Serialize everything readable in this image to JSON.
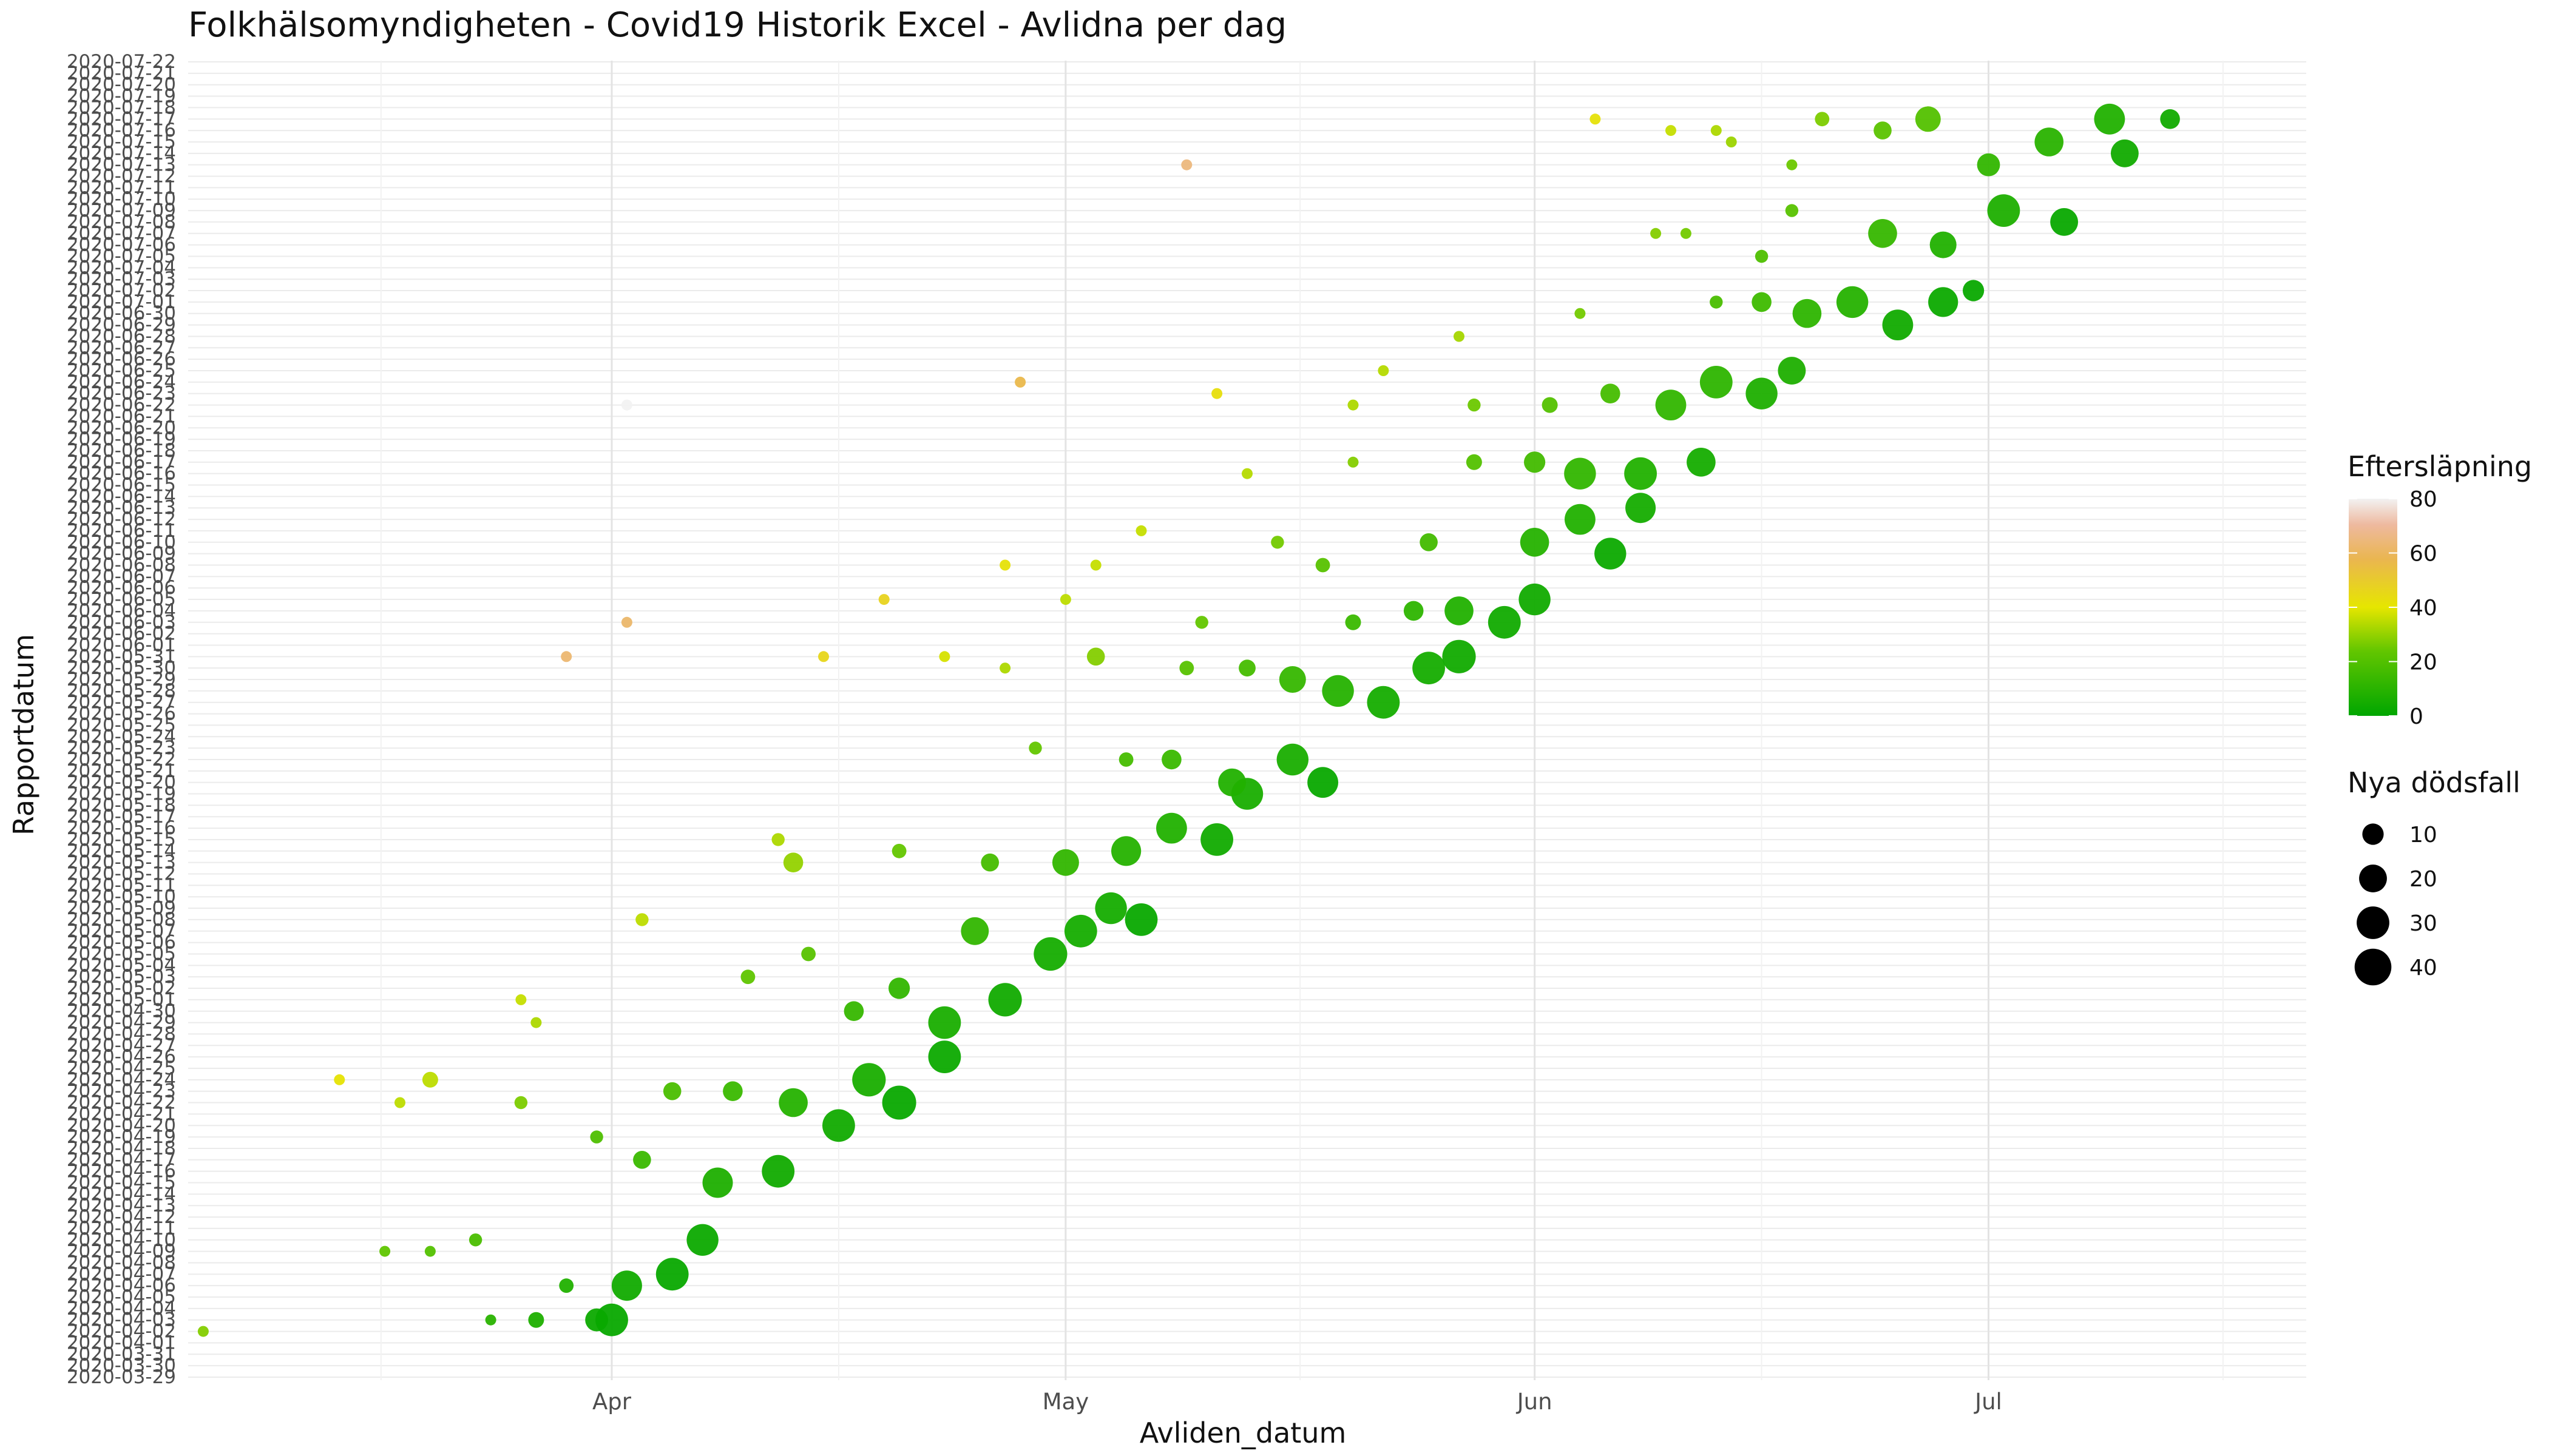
{
  "chart_data": {
    "type": "scatter",
    "title": "Folkhälsomyndigheten - Covid19 Historik Excel - Avlidna per dag",
    "xlabel": "Avliden_datum",
    "ylabel": "Rapportdatum",
    "x_tick_labels": [
      "Apr",
      "May",
      "Jun",
      "Jul"
    ],
    "x_tick_dates": [
      "2020-04-01",
      "2020-05-01",
      "2020-06-01",
      "2020-07-01"
    ],
    "xlim": [
      "2020-03-04",
      "2020-07-22"
    ],
    "y_tick_labels": [
      "2020-03-29",
      "2020-03-30",
      "2020-03-31",
      "2020-04-01",
      "2020-04-02",
      "2020-04-03",
      "2020-04-04",
      "2020-04-05",
      "2020-04-06",
      "2020-04-07",
      "2020-04-08",
      "2020-04-09",
      "2020-04-10",
      "2020-04-11",
      "2020-04-12",
      "2020-04-13",
      "2020-04-14",
      "2020-04-15",
      "2020-04-16",
      "2020-04-17",
      "2020-04-18",
      "2020-04-19",
      "2020-04-20",
      "2020-04-21",
      "2020-04-22",
      "2020-04-23",
      "2020-04-24",
      "2020-04-25",
      "2020-04-26",
      "2020-04-27",
      "2020-04-28",
      "2020-04-29",
      "2020-04-30",
      "2020-05-01",
      "2020-05-02",
      "2020-05-03",
      "2020-05-04",
      "2020-05-05",
      "2020-05-06",
      "2020-05-07",
      "2020-05-08",
      "2020-05-09",
      "2020-05-10",
      "2020-05-11",
      "2020-05-12",
      "2020-05-13",
      "2020-05-14",
      "2020-05-15",
      "2020-05-16",
      "2020-05-17",
      "2020-05-18",
      "2020-05-19",
      "2020-05-20",
      "2020-05-21",
      "2020-05-22",
      "2020-05-23",
      "2020-05-24",
      "2020-05-25",
      "2020-05-26",
      "2020-05-27",
      "2020-05-28",
      "2020-05-29",
      "2020-05-30",
      "2020-05-31",
      "2020-06-01",
      "2020-06-02",
      "2020-06-03",
      "2020-06-04",
      "2020-06-05",
      "2020-06-06",
      "2020-06-07",
      "2020-06-08",
      "2020-06-09",
      "2020-06-10",
      "2020-06-11",
      "2020-06-12",
      "2020-06-13",
      "2020-06-14",
      "2020-06-15",
      "2020-06-16",
      "2020-06-17",
      "2020-06-18",
      "2020-06-19",
      "2020-06-20",
      "2020-06-21",
      "2020-06-22",
      "2020-06-23",
      "2020-06-24",
      "2020-06-25",
      "2020-06-26",
      "2020-06-27",
      "2020-06-28",
      "2020-06-29",
      "2020-06-30",
      "2020-07-01",
      "2020-07-02",
      "2020-07-03",
      "2020-07-04",
      "2020-07-05",
      "2020-07-06",
      "2020-07-07",
      "2020-07-08",
      "2020-07-09",
      "2020-07-10",
      "2020-07-11",
      "2020-07-12",
      "2020-07-13",
      "2020-07-14",
      "2020-07-15",
      "2020-07-16",
      "2020-07-17",
      "2020-07-18",
      "2020-07-19",
      "2020-07-20",
      "2020-07-21",
      "2020-07-22"
    ],
    "grid": true,
    "theme": "minimal",
    "color_legend": {
      "title": "Eftersläpning",
      "ticks": [
        0,
        20,
        40,
        60,
        80
      ],
      "range": [
        0,
        80
      ],
      "gradient": [
        "#00a600",
        "#e6e600",
        "#eab64f",
        "#eeb99f",
        "#f2f2f2"
      ],
      "placement": "right"
    },
    "size_legend": {
      "title": "Nya dödsfall",
      "values": [
        10,
        20,
        30,
        40
      ],
      "placement": "right"
    },
    "points": [
      {
        "x": "2020-03-05",
        "y": "2020-04-02",
        "lag": 28,
        "n": 1
      },
      {
        "x": "2020-03-17",
        "y": "2020-04-09",
        "lag": 23,
        "n": 1
      },
      {
        "x": "2020-03-20",
        "y": "2020-04-09",
        "lag": 20,
        "n": 1
      },
      {
        "x": "2020-03-23",
        "y": "2020-04-10",
        "lag": 18,
        "n": 2
      },
      {
        "x": "2020-03-24",
        "y": "2020-04-03",
        "lag": 10,
        "n": 1
      },
      {
        "x": "2020-03-27",
        "y": "2020-04-03",
        "lag": 7,
        "n": 4
      },
      {
        "x": "2020-03-29",
        "y": "2020-04-06",
        "lag": 8,
        "n": 3
      },
      {
        "x": "2020-03-31",
        "y": "2020-04-03",
        "lag": 3,
        "n": 12
      },
      {
        "x": "2020-04-01",
        "y": "2020-04-03",
        "lag": 2,
        "n": 30
      },
      {
        "x": "2020-04-02",
        "y": "2020-04-06",
        "lag": 4,
        "n": 25
      },
      {
        "x": "2020-04-05",
        "y": "2020-04-07",
        "lag": 2,
        "n": 30
      },
      {
        "x": "2020-04-07",
        "y": "2020-04-10",
        "lag": 3,
        "n": 28
      },
      {
        "x": "2020-03-14",
        "y": "2020-04-24",
        "lag": 41,
        "n": 1
      },
      {
        "x": "2020-03-18",
        "y": "2020-04-22",
        "lag": 35,
        "n": 1
      },
      {
        "x": "2020-03-20",
        "y": "2020-04-24",
        "lag": 35,
        "n": 4
      },
      {
        "x": "2020-03-26",
        "y": "2020-04-22",
        "lag": 27,
        "n": 2
      },
      {
        "x": "2020-03-31",
        "y": "2020-04-19",
        "lag": 19,
        "n": 2
      },
      {
        "x": "2020-04-03",
        "y": "2020-04-17",
        "lag": 14,
        "n": 6
      },
      {
        "x": "2020-04-05",
        "y": "2020-04-23",
        "lag": 18,
        "n": 6
      },
      {
        "x": "2020-04-08",
        "y": "2020-04-15",
        "lag": 7,
        "n": 25
      },
      {
        "x": "2020-04-09",
        "y": "2020-04-23",
        "lag": 14,
        "n": 8
      },
      {
        "x": "2020-04-12",
        "y": "2020-04-16",
        "lag": 4,
        "n": 30
      },
      {
        "x": "2020-04-13",
        "y": "2020-04-22",
        "lag": 9,
        "n": 22
      },
      {
        "x": "2020-04-16",
        "y": "2020-04-20",
        "lag": 4,
        "n": 30
      },
      {
        "x": "2020-04-18",
        "y": "2020-04-24",
        "lag": 6,
        "n": 32
      },
      {
        "x": "2020-04-20",
        "y": "2020-04-22",
        "lag": 2,
        "n": 33
      },
      {
        "x": "2020-04-23",
        "y": "2020-04-26",
        "lag": 3,
        "n": 30
      },
      {
        "x": "2020-03-26",
        "y": "2020-05-01",
        "lag": 36,
        "n": 1
      },
      {
        "x": "2020-03-27",
        "y": "2020-04-29",
        "lag": 33,
        "n": 1
      },
      {
        "x": "2020-04-03",
        "y": "2020-05-08",
        "lag": 35,
        "n": 2
      },
      {
        "x": "2020-04-10",
        "y": "2020-05-03",
        "lag": 23,
        "n": 3
      },
      {
        "x": "2020-04-14",
        "y": "2020-05-05",
        "lag": 21,
        "n": 3
      },
      {
        "x": "2020-04-17",
        "y": "2020-04-30",
        "lag": 13,
        "n": 8
      },
      {
        "x": "2020-04-20",
        "y": "2020-05-02",
        "lag": 12,
        "n": 10
      },
      {
        "x": "2020-04-23",
        "y": "2020-04-29",
        "lag": 6,
        "n": 30
      },
      {
        "x": "2020-04-25",
        "y": "2020-05-07",
        "lag": 12,
        "n": 20
      },
      {
        "x": "2020-04-27",
        "y": "2020-05-01",
        "lag": 4,
        "n": 32
      },
      {
        "x": "2020-04-30",
        "y": "2020-05-05",
        "lag": 5,
        "n": 32
      },
      {
        "x": "2020-05-02",
        "y": "2020-05-07",
        "lag": 5,
        "n": 30
      },
      {
        "x": "2020-05-04",
        "y": "2020-05-09",
        "lag": 5,
        "n": 28
      },
      {
        "x": "2020-05-06",
        "y": "2020-05-08",
        "lag": 2,
        "n": 30
      },
      {
        "x": "2020-04-12",
        "y": "2020-05-15",
        "lag": 33,
        "n": 2
      },
      {
        "x": "2020-04-13",
        "y": "2020-05-13",
        "lag": 30,
        "n": 8
      },
      {
        "x": "2020-04-20",
        "y": "2020-05-14",
        "lag": 24,
        "n": 3
      },
      {
        "x": "2020-04-26",
        "y": "2020-05-13",
        "lag": 17,
        "n": 6
      },
      {
        "x": "2020-05-01",
        "y": "2020-05-13",
        "lag": 12,
        "n": 18
      },
      {
        "x": "2020-05-05",
        "y": "2020-05-14",
        "lag": 9,
        "n": 24
      },
      {
        "x": "2020-05-08",
        "y": "2020-05-16",
        "lag": 8,
        "n": 26
      },
      {
        "x": "2020-05-11",
        "y": "2020-05-15",
        "lag": 4,
        "n": 30
      },
      {
        "x": "2020-05-13",
        "y": "2020-05-19",
        "lag": 6,
        "n": 28
      },
      {
        "x": "2020-05-16",
        "y": "2020-05-22",
        "lag": 6,
        "n": 28
      },
      {
        "x": "2020-05-18",
        "y": "2020-05-20",
        "lag": 2,
        "n": 26
      },
      {
        "x": "2020-04-29",
        "y": "2020-05-23",
        "lag": 24,
        "n": 2
      },
      {
        "x": "2020-05-05",
        "y": "2020-05-22",
        "lag": 17,
        "n": 3
      },
      {
        "x": "2020-05-08",
        "y": "2020-05-22",
        "lag": 14,
        "n": 8
      },
      {
        "x": "2020-05-12",
        "y": "2020-05-20",
        "lag": 8,
        "n": 20
      },
      {
        "x": "2020-03-29",
        "y": "2020-05-31",
        "lag": 63,
        "n": 1
      },
      {
        "x": "2020-04-15",
        "y": "2020-05-31",
        "lag": 46,
        "n": 1
      },
      {
        "x": "2020-04-23",
        "y": "2020-05-31",
        "lag": 38,
        "n": 1
      },
      {
        "x": "2020-04-27",
        "y": "2020-05-30",
        "lag": 33,
        "n": 1
      },
      {
        "x": "2020-05-03",
        "y": "2020-05-31",
        "lag": 28,
        "n": 6
      },
      {
        "x": "2020-05-09",
        "y": "2020-05-30",
        "lag": 21,
        "n": 3
      },
      {
        "x": "2020-05-13",
        "y": "2020-05-30",
        "lag": 17,
        "n": 5
      },
      {
        "x": "2020-05-16",
        "y": "2020-05-29",
        "lag": 13,
        "n": 18
      },
      {
        "x": "2020-05-19",
        "y": "2020-05-28",
        "lag": 9,
        "n": 28
      },
      {
        "x": "2020-05-22",
        "y": "2020-05-27",
        "lag": 5,
        "n": 30
      },
      {
        "x": "2020-05-25",
        "y": "2020-05-30",
        "lag": 5,
        "n": 30
      },
      {
        "x": "2020-05-27",
        "y": "2020-05-31",
        "lag": 4,
        "n": 32
      },
      {
        "x": "2020-04-02",
        "y": "2020-06-03",
        "lag": 62,
        "n": 1
      },
      {
        "x": "2020-04-19",
        "y": "2020-06-05",
        "lag": 47,
        "n": 1
      },
      {
        "x": "2020-05-01",
        "y": "2020-06-05",
        "lag": 35,
        "n": 1
      },
      {
        "x": "2020-05-10",
        "y": "2020-06-03",
        "lag": 24,
        "n": 2
      },
      {
        "x": "2020-05-20",
        "y": "2020-06-03",
        "lag": 14,
        "n": 4
      },
      {
        "x": "2020-05-24",
        "y": "2020-06-04",
        "lag": 11,
        "n": 8
      },
      {
        "x": "2020-05-27",
        "y": "2020-06-04",
        "lag": 8,
        "n": 22
      },
      {
        "x": "2020-05-30",
        "y": "2020-06-03",
        "lag": 4,
        "n": 30
      },
      {
        "x": "2020-06-01",
        "y": "2020-06-05",
        "lag": 4,
        "n": 28
      },
      {
        "x": "2020-04-27",
        "y": "2020-06-08",
        "lag": 42,
        "n": 1
      },
      {
        "x": "2020-05-03",
        "y": "2020-06-08",
        "lag": 36,
        "n": 1
      },
      {
        "x": "2020-05-06",
        "y": "2020-06-11",
        "lag": 36,
        "n": 1
      },
      {
        "x": "2020-05-15",
        "y": "2020-06-10",
        "lag": 26,
        "n": 2
      },
      {
        "x": "2020-05-18",
        "y": "2020-06-08",
        "lag": 21,
        "n": 3
      },
      {
        "x": "2020-05-25",
        "y": "2020-06-10",
        "lag": 16,
        "n": 6
      },
      {
        "x": "2020-06-01",
        "y": "2020-06-10",
        "lag": 9,
        "n": 22
      },
      {
        "x": "2020-06-04",
        "y": "2020-06-12",
        "lag": 8,
        "n": 26
      },
      {
        "x": "2020-06-06",
        "y": "2020-06-09",
        "lag": 3,
        "n": 28
      },
      {
        "x": "2020-06-08",
        "y": "2020-06-13",
        "lag": 5,
        "n": 25
      },
      {
        "x": "2020-05-13",
        "y": "2020-06-16",
        "lag": 34,
        "n": 1
      },
      {
        "x": "2020-05-20",
        "y": "2020-06-17",
        "lag": 28,
        "n": 1
      },
      {
        "x": "2020-05-28",
        "y": "2020-06-17",
        "lag": 20,
        "n": 4
      },
      {
        "x": "2020-06-01",
        "y": "2020-06-17",
        "lag": 16,
        "n": 10
      },
      {
        "x": "2020-06-04",
        "y": "2020-06-16",
        "lag": 12,
        "n": 28
      },
      {
        "x": "2020-06-08",
        "y": "2020-06-16",
        "lag": 8,
        "n": 30
      },
      {
        "x": "2020-06-12",
        "y": "2020-06-17",
        "lag": 5,
        "n": 22
      },
      {
        "x": "2020-04-02",
        "y": "2020-06-22",
        "lag": 81,
        "n": 1
      },
      {
        "x": "2020-04-28",
        "y": "2020-06-24",
        "lag": 57,
        "n": 1
      },
      {
        "x": "2020-05-11",
        "y": "2020-06-23",
        "lag": 43,
        "n": 1
      },
      {
        "x": "2020-05-20",
        "y": "2020-06-22",
        "lag": 33,
        "n": 1
      },
      {
        "x": "2020-05-22",
        "y": "2020-06-25",
        "lag": 34,
        "n": 1
      },
      {
        "x": "2020-05-28",
        "y": "2020-06-22",
        "lag": 25,
        "n": 2
      },
      {
        "x": "2020-06-02",
        "y": "2020-06-22",
        "lag": 20,
        "n": 4
      },
      {
        "x": "2020-06-06",
        "y": "2020-06-23",
        "lag": 17,
        "n": 8
      },
      {
        "x": "2020-06-10",
        "y": "2020-06-22",
        "lag": 12,
        "n": 26
      },
      {
        "x": "2020-06-13",
        "y": "2020-06-24",
        "lag": 11,
        "n": 30
      },
      {
        "x": "2020-06-16",
        "y": "2020-06-23",
        "lag": 7,
        "n": 28
      },
      {
        "x": "2020-06-18",
        "y": "2020-06-25",
        "lag": 7,
        "n": 20
      },
      {
        "x": "2020-05-27",
        "y": "2020-06-28",
        "lag": 32,
        "n": 1
      },
      {
        "x": "2020-06-04",
        "y": "2020-06-30",
        "lag": 26,
        "n": 1
      },
      {
        "x": "2020-06-13",
        "y": "2020-07-01",
        "lag": 18,
        "n": 2
      },
      {
        "x": "2020-06-16",
        "y": "2020-07-01",
        "lag": 15,
        "n": 8
      },
      {
        "x": "2020-06-19",
        "y": "2020-06-30",
        "lag": 11,
        "n": 22
      },
      {
        "x": "2020-06-22",
        "y": "2020-07-01",
        "lag": 9,
        "n": 28
      },
      {
        "x": "2020-06-25",
        "y": "2020-06-29",
        "lag": 4,
        "n": 26
      },
      {
        "x": "2020-06-28",
        "y": "2020-07-01",
        "lag": 3,
        "n": 24
      },
      {
        "x": "2020-06-30",
        "y": "2020-07-02",
        "lag": 2,
        "n": 10
      },
      {
        "x": "2020-06-09",
        "y": "2020-07-07",
        "lag": 28,
        "n": 1
      },
      {
        "x": "2020-06-11",
        "y": "2020-07-07",
        "lag": 26,
        "n": 1
      },
      {
        "x": "2020-06-16",
        "y": "2020-07-05",
        "lag": 19,
        "n": 2
      },
      {
        "x": "2020-06-18",
        "y": "2020-07-09",
        "lag": 21,
        "n": 2
      },
      {
        "x": "2020-06-24",
        "y": "2020-07-07",
        "lag": 13,
        "n": 22
      },
      {
        "x": "2020-06-28",
        "y": "2020-07-06",
        "lag": 8,
        "n": 18
      },
      {
        "x": "2020-07-02",
        "y": "2020-07-09",
        "lag": 7,
        "n": 30
      },
      {
        "x": "2020-07-06",
        "y": "2020-07-08",
        "lag": 2,
        "n": 20
      },
      {
        "x": "2020-05-09",
        "y": "2020-07-13",
        "lag": 65,
        "n": 1
      },
      {
        "x": "2020-06-05",
        "y": "2020-07-17",
        "lag": 42,
        "n": 1
      },
      {
        "x": "2020-06-10",
        "y": "2020-07-16",
        "lag": 36,
        "n": 1
      },
      {
        "x": "2020-06-13",
        "y": "2020-07-16",
        "lag": 33,
        "n": 1
      },
      {
        "x": "2020-06-14",
        "y": "2020-07-15",
        "lag": 31,
        "n": 1
      },
      {
        "x": "2020-06-18",
        "y": "2020-07-13",
        "lag": 25,
        "n": 1
      },
      {
        "x": "2020-06-20",
        "y": "2020-07-17",
        "lag": 27,
        "n": 3
      },
      {
        "x": "2020-06-24",
        "y": "2020-07-16",
        "lag": 22,
        "n": 6
      },
      {
        "x": "2020-06-27",
        "y": "2020-07-17",
        "lag": 20,
        "n": 16
      },
      {
        "x": "2020-07-01",
        "y": "2020-07-13",
        "lag": 12,
        "n": 12
      },
      {
        "x": "2020-07-05",
        "y": "2020-07-15",
        "lag": 10,
        "n": 22
      },
      {
        "x": "2020-07-09",
        "y": "2020-07-17",
        "lag": 8,
        "n": 26
      },
      {
        "x": "2020-07-10",
        "y": "2020-07-14",
        "lag": 4,
        "n": 20
      },
      {
        "x": "2020-07-13",
        "y": "2020-07-17",
        "lag": 4,
        "n": 8
      }
    ]
  }
}
